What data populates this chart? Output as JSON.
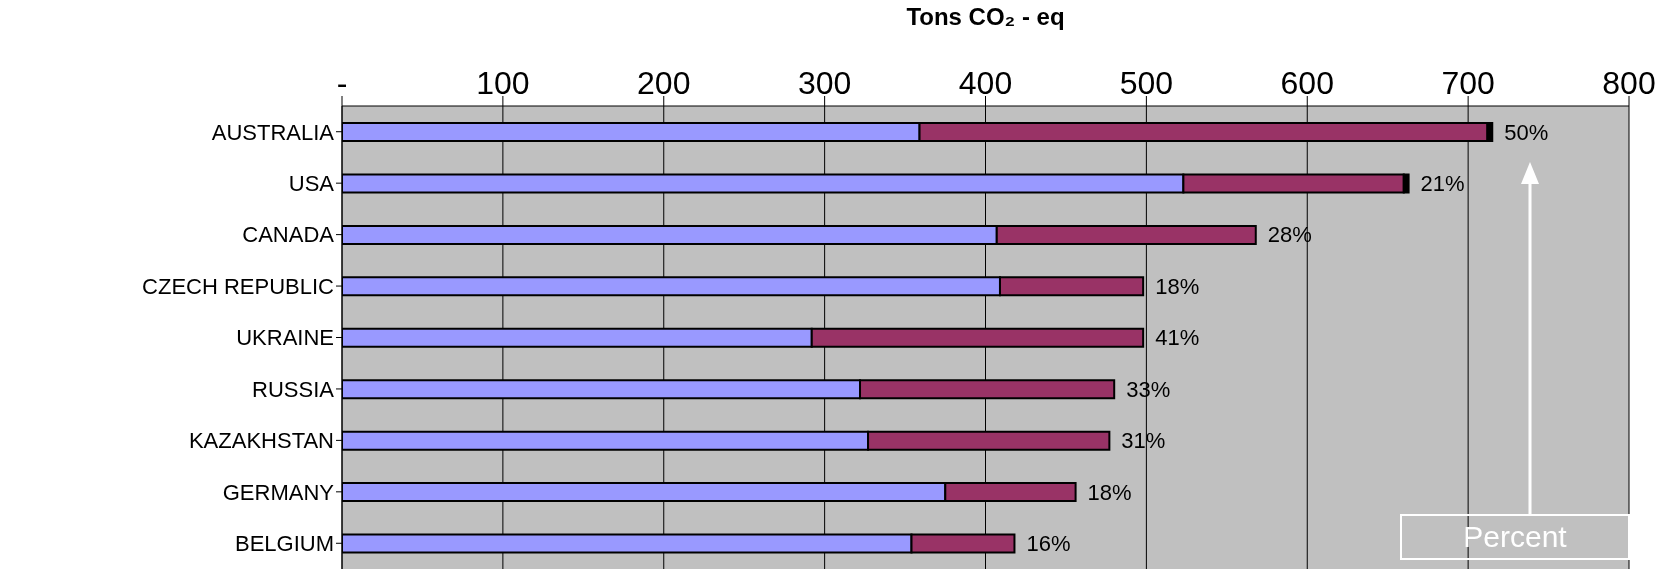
{
  "chart_data": {
    "type": "bar",
    "orientation": "horizontal",
    "stacked": true,
    "xlabel": "Tons CO₂ - eq",
    "categories": [
      "AUSTRALIA",
      "USA",
      "CANADA",
      "CZECH REPUBLIC",
      "UKRAINE",
      "RUSSIA",
      "KAZAKHSTAN",
      "GERMANY",
      "BELGIUM"
    ],
    "series": [
      {
        "color": "#9999ff",
        "values": [
          359,
          523,
          407,
          409,
          292,
          322,
          327,
          375,
          354
        ]
      },
      {
        "color": "#993366",
        "values": [
          353,
          137,
          161,
          89,
          206,
          158,
          150,
          81,
          64
        ]
      },
      {
        "color": "#000000",
        "values": [
          3,
          3,
          0,
          0,
          0,
          0,
          0,
          0,
          0
        ]
      }
    ],
    "xlim": [
      0,
      800
    ],
    "xticks": [
      {
        "value": 0,
        "label": "-"
      },
      100,
      200,
      300,
      400,
      500,
      600,
      700,
      800
    ],
    "grid": "x",
    "annotations": [
      {
        "text": "50%",
        "x": 715,
        "y": "AUSTRALIA"
      },
      {
        "text": "21%",
        "x": 663,
        "y": "USA"
      },
      {
        "text": "28%",
        "x": 568,
        "y": "CANADA"
      },
      {
        "text": "18%",
        "x": 498,
        "y": "CZECH REPUBLIC"
      },
      {
        "text": "41%",
        "x": 498,
        "y": "UKRAINE"
      },
      {
        "text": "33%",
        "x": 480,
        "y": "RUSSIA"
      },
      {
        "text": "31%",
        "x": 477,
        "y": "KAZAKHSTAN"
      },
      {
        "text": "18%",
        "x": 456,
        "y": "GERMANY"
      },
      {
        "text": "16%",
        "x": 418,
        "y": "BELGIUM"
      },
      "Percent"
    ]
  }
}
